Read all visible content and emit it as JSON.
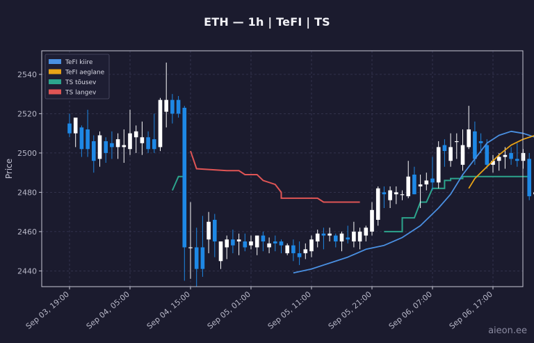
{
  "chart_data": {
    "type": "candlestick",
    "title": "ETH — 1h  |  TeFI  |  TS",
    "ylabel": "Price",
    "xlabel": "",
    "ylim": [
      2432,
      2552
    ],
    "y_ticks": [
      2440,
      2460,
      2480,
      2500,
      2520,
      2540
    ],
    "x_ticks": [
      "Sep 03, 19:00",
      "Sep 04, 05:00",
      "Sep 04, 15:00",
      "Sep 05, 01:00",
      "Sep 05, 11:00",
      "Sep 05, 21:00",
      "Sep 06, 07:00",
      "Sep 06, 17:00"
    ],
    "grid": true,
    "legend_position": "top-left",
    "legend": [
      {
        "label": "TeFI kiire",
        "color": "#4a90e2"
      },
      {
        "label": "TeFI aeglane",
        "color": "#e8a317"
      },
      {
        "label": "TS tõusev",
        "color": "#2ca58d"
      },
      {
        "label": "TS langev",
        "color": "#e05555"
      }
    ],
    "colors": {
      "up": "#ffffff",
      "down": "#1e88e5",
      "background": "#1b1b2e"
    },
    "candles": [
      [
        2515,
        2520,
        2508,
        2510
      ],
      [
        2510,
        2518,
        2503,
        2518
      ],
      [
        2513,
        2514,
        2498,
        2502
      ],
      [
        2512,
        2522,
        2498,
        2502
      ],
      [
        2506,
        2509,
        2490,
        2496
      ],
      [
        2497,
        2511,
        2493,
        2509
      ],
      [
        2506,
        2508,
        2495,
        2500
      ],
      [
        2505,
        2511,
        2497,
        2503
      ],
      [
        2503,
        2510,
        2497,
        2507
      ],
      [
        2503,
        2512,
        2495,
        2504
      ],
      [
        2502,
        2522,
        2499,
        2510
      ],
      [
        2508,
        2514,
        2500,
        2511
      ],
      [
        2505,
        2516,
        2499,
        2508
      ],
      [
        2508,
        2511,
        2500,
        2502
      ],
      [
        2507,
        2520,
        2500,
        2502
      ],
      [
        2503,
        2528,
        2501,
        2527
      ],
      [
        2521,
        2546,
        2513,
        2527
      ],
      [
        2527,
        2530,
        2515,
        2520
      ],
      [
        2527,
        2529,
        2518,
        2520
      ],
      [
        2523,
        2524,
        2435,
        2452
      ],
      [
        2452,
        2475,
        2436,
        2452
      ],
      [
        2452,
        2462,
        2432,
        2441
      ],
      [
        2452,
        2468,
        2437,
        2441
      ],
      [
        2456,
        2470,
        2449,
        2465
      ],
      [
        2466,
        2469,
        2447,
        2455
      ],
      [
        2445,
        2454,
        2441,
        2455
      ],
      [
        2452,
        2458,
        2446,
        2456
      ],
      [
        2456,
        2461,
        2449,
        2453
      ],
      [
        2455,
        2459,
        2448,
        2456
      ],
      [
        2455,
        2459,
        2450,
        2452
      ],
      [
        2453,
        2458,
        2451,
        2455
      ],
      [
        2452,
        2457,
        2448,
        2458
      ],
      [
        2458,
        2460,
        2450,
        2455
      ],
      [
        2452,
        2457,
        2449,
        2454
      ],
      [
        2455,
        2458,
        2450,
        2454
      ],
      [
        2455,
        2456,
        2449,
        2453
      ],
      [
        2449,
        2454,
        2448,
        2453
      ],
      [
        2453,
        2456,
        2445,
        2449
      ],
      [
        2449,
        2455,
        2443,
        2447
      ],
      [
        2449,
        2454,
        2446,
        2451
      ],
      [
        2450,
        2458,
        2447,
        2456
      ],
      [
        2455,
        2461,
        2452,
        2459
      ],
      [
        2459,
        2462,
        2451,
        2458
      ],
      [
        2458,
        2462,
        2455,
        2459
      ],
      [
        2458,
        2459,
        2452,
        2455
      ],
      [
        2455,
        2460,
        2450,
        2459
      ],
      [
        2457,
        2463,
        2454,
        2456
      ],
      [
        2455,
        2465,
        2452,
        2460
      ],
      [
        2455,
        2462,
        2451,
        2460
      ],
      [
        2458,
        2463,
        2455,
        2462
      ],
      [
        2460,
        2475,
        2458,
        2471
      ],
      [
        2466,
        2483,
        2463,
        2482
      ],
      [
        2480,
        2483,
        2472,
        2479
      ],
      [
        2476,
        2483,
        2472,
        2481
      ],
      [
        2479,
        2483,
        2474,
        2480
      ],
      [
        2479,
        2481,
        2476,
        2479
      ],
      [
        2478,
        2496,
        2477,
        2488
      ],
      [
        2489,
        2493,
        2479,
        2479
      ],
      [
        2483,
        2489,
        2472,
        2484
      ],
      [
        2484,
        2490,
        2481,
        2486
      ],
      [
        2487,
        2498,
        2481,
        2485
      ],
      [
        2485,
        2506,
        2482,
        2503
      ],
      [
        2504,
        2507,
        2493,
        2501
      ],
      [
        2496,
        2510,
        2493,
        2503
      ],
      [
        2506,
        2510,
        2497,
        2506
      ],
      [
        2494,
        2512,
        2491,
        2504
      ],
      [
        2503,
        2524,
        2502,
        2512
      ],
      [
        2511,
        2516,
        2494,
        2497
      ],
      [
        2506,
        2510,
        2500,
        2505
      ],
      [
        2504,
        2507,
        2492,
        2494
      ],
      [
        2494,
        2499,
        2490,
        2496
      ],
      [
        2496,
        2500,
        2491,
        2498
      ],
      [
        2498,
        2503,
        2492,
        2499
      ],
      [
        2500,
        2503,
        2494,
        2497
      ],
      [
        2497,
        2505,
        2493,
        2496
      ],
      [
        2496,
        2502,
        2492,
        2500
      ],
      [
        2497,
        2500,
        2476,
        2478
      ],
      [
        2479,
        2490,
        2467,
        2480
      ],
      [
        2480,
        2490,
        2476,
        2485
      ],
      [
        2484,
        2494,
        2480,
        2490
      ],
      [
        2489,
        2500,
        2482,
        2492
      ]
    ],
    "series": [
      {
        "name": "TeFI kiire",
        "color": "#4a90e2",
        "points": [
          [
            37,
            2439
          ],
          [
            40,
            2441
          ],
          [
            43,
            2444
          ],
          [
            46,
            2447
          ],
          [
            49,
            2451
          ],
          [
            52,
            2453
          ],
          [
            55,
            2457
          ],
          [
            58,
            2463
          ],
          [
            61,
            2472
          ],
          [
            63,
            2479
          ],
          [
            65,
            2489
          ],
          [
            67,
            2497
          ],
          [
            69,
            2505
          ],
          [
            71,
            2509
          ],
          [
            73,
            2511
          ],
          [
            75,
            2510
          ],
          [
            77,
            2508
          ],
          [
            79,
            2503
          ],
          [
            80,
            2500
          ]
        ]
      },
      {
        "name": "TeFI aeglane",
        "color": "#e8a317",
        "points": [
          [
            66,
            2482
          ],
          [
            67,
            2487
          ],
          [
            69,
            2493
          ],
          [
            71,
            2499
          ],
          [
            73,
            2504
          ],
          [
            75,
            2507
          ],
          [
            77,
            2509
          ],
          [
            79,
            2509
          ],
          [
            81,
            2507
          ],
          [
            82,
            2506
          ]
        ]
      },
      {
        "name": "TS tõusev",
        "color": "#2ca58d",
        "segments": [
          [
            [
              17,
              2481
            ],
            [
              18,
              2488
            ],
            [
              19,
              2488
            ]
          ],
          [
            [
              52,
              2460
            ],
            [
              55,
              2460
            ],
            [
              55,
              2467
            ],
            [
              57,
              2467
            ],
            [
              58,
              2475
            ],
            [
              59,
              2475
            ],
            [
              60,
              2482
            ],
            [
              62,
              2482
            ],
            [
              62,
              2486
            ],
            [
              63,
              2486
            ],
            [
              63,
              2487
            ],
            [
              65,
              2487
            ],
            [
              65,
              2488
            ],
            [
              76,
              2488
            ],
            [
              76,
              2481
            ]
          ]
        ]
      },
      {
        "name": "TS langev",
        "color": "#e05555",
        "segments": [
          [
            [
              20,
              2501
            ],
            [
              21,
              2492
            ],
            [
              26,
              2491
            ],
            [
              28,
              2491
            ],
            [
              29,
              2489
            ],
            [
              31,
              2489
            ],
            [
              32,
              2486
            ],
            [
              34,
              2484
            ],
            [
              35,
              2480
            ],
            [
              35,
              2477
            ],
            [
              40,
              2477
            ],
            [
              41,
              2477
            ],
            [
              42,
              2475
            ],
            [
              48,
              2475
            ]
          ],
          [
            [
              78,
              2506
            ],
            [
              82,
              2506
            ]
          ]
        ]
      }
    ]
  },
  "watermark": "aieon.ee"
}
